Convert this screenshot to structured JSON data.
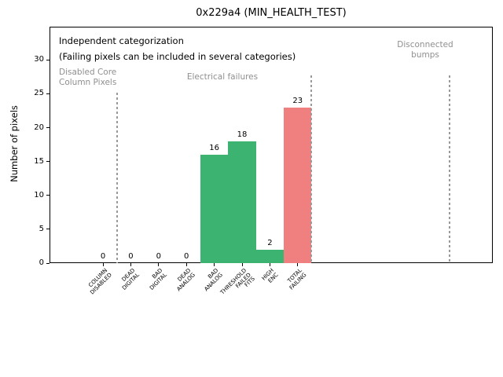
{
  "chart_data": {
    "type": "bar",
    "title": "0x229a4 (MIN_HEALTH_TEST)",
    "xlabel": "",
    "ylabel": "Number of pixels",
    "ylim": [
      0,
      34.9
    ],
    "yticks": [
      0,
      5,
      10,
      15,
      20,
      25,
      30
    ],
    "grid": false,
    "legend": "none",
    "categories": [
      "COLUMN\nDISABLED",
      "DEAD\nDIGITAL",
      "BAD\nDIGITAL",
      "DEAD\nANALOG",
      "BAD\nANALOG",
      "THRESHOLD\nFAILED\nFITS",
      "HIGH\nENC",
      "TOTAL\nFAILING"
    ],
    "values": [
      0,
      0,
      0,
      0,
      16,
      18,
      2,
      23
    ],
    "value_labels": [
      "0",
      "0",
      "0",
      "0",
      "16",
      "18",
      "2",
      "23"
    ],
    "bar_colors": [
      "#3cb371",
      "#3cb371",
      "#3cb371",
      "#3cb371",
      "#3cb371",
      "#3cb371",
      "#3cb371",
      "#f08080"
    ],
    "colors": {
      "green_bar": "#3cb371",
      "red_bar": "#f08080",
      "gray_text": "#8f8f8f",
      "separator_line": "#9a9a9a",
      "axis": "#000000"
    },
    "annotations": [
      {
        "name": "independent-categorization-note",
        "text": "Independent categorization",
        "color": "#000000",
        "size": 11.5,
        "x": 75,
        "y": 45,
        "align": "left"
      },
      {
        "name": "failing-pixels-note",
        "text": "(Failing pixels can be included in several categories)",
        "color": "#000000",
        "size": 11.5,
        "x": 75,
        "y": 65,
        "align": "left"
      },
      {
        "name": "disabled-core-section-label",
        "text": "Disabled Core\nColumn Pixels",
        "color": "#8f8f8f",
        "size": 10.5,
        "x": 75,
        "y": 86,
        "align": "left"
      },
      {
        "name": "electrical-failures-section-label",
        "text": "Electrical failures",
        "color": "#8f8f8f",
        "size": 10.5,
        "x": 283,
        "y": 92,
        "align": "center"
      },
      {
        "name": "disconnected-bumps-section-label",
        "text": "Disconnected\nbumps",
        "color": "#8f8f8f",
        "size": 10.5,
        "x": 541,
        "y": 51,
        "align": "center"
      }
    ],
    "separators": [
      {
        "x": 149,
        "y1": 118
      },
      {
        "x": 396,
        "y1": 96
      },
      {
        "x": 572,
        "y1": 96
      }
    ]
  }
}
